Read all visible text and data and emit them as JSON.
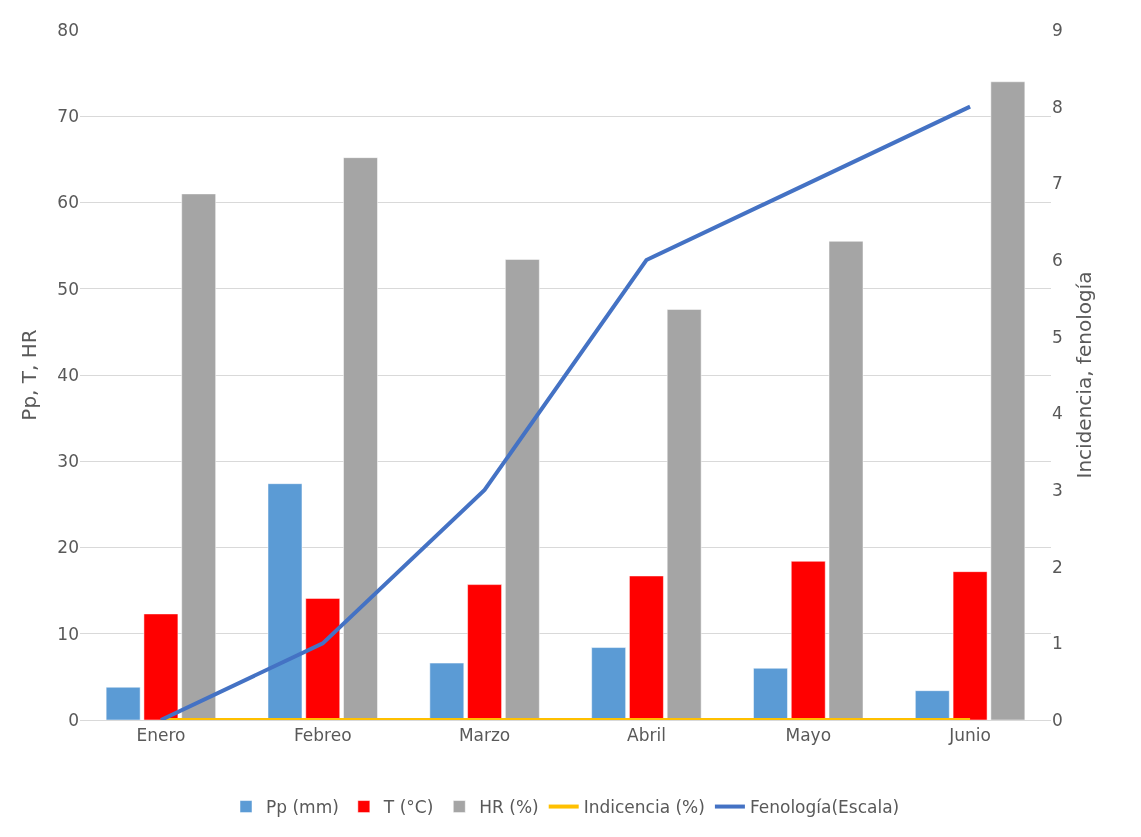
{
  "chart_data": {
    "type": "bar",
    "ylabel": "Pp, T, HR",
    "y2label": "Incidencia, fenología",
    "categories": [
      "Enero",
      "Febreo",
      "Marzo",
      "Abril",
      "Mayo",
      "Junio"
    ],
    "series": [
      {
        "name": "Pp (mm)",
        "color": "#5b9bd5",
        "values": [
          3.8,
          27.4,
          6.6,
          8.4,
          6.0,
          3.4
        ]
      },
      {
        "name": "T (°C)",
        "color": "#ff0000",
        "values": [
          12.3,
          14.1,
          15.7,
          16.7,
          18.4,
          17.2
        ]
      },
      {
        "name": "HR (%)",
        "color": "#a5a5a5",
        "values": [
          61.0,
          65.2,
          53.4,
          47.6,
          55.5,
          74.0
        ]
      },
      {
        "name": "Indicencia (%)",
        "color": "#ffc000",
        "type": "line",
        "axis": "y2",
        "values": [
          0,
          0,
          0,
          0,
          0,
          0
        ]
      },
      {
        "name": "Fenología(Escala)",
        "color": "#4472c4",
        "type": "line",
        "axis": "y2",
        "values": [
          0,
          1,
          3,
          6,
          7,
          8
        ]
      }
    ],
    "ylim": [
      0,
      80
    ],
    "yticks": [
      0,
      10,
      20,
      30,
      40,
      50,
      60,
      70,
      80
    ],
    "y2lim": [
      0,
      9
    ],
    "y2ticks": [
      0,
      1,
      2,
      3,
      4,
      5,
      6,
      7,
      8,
      9
    ],
    "grid": "y",
    "legend": "bottom",
    "marker": "none",
    "line_style": "solid"
  }
}
